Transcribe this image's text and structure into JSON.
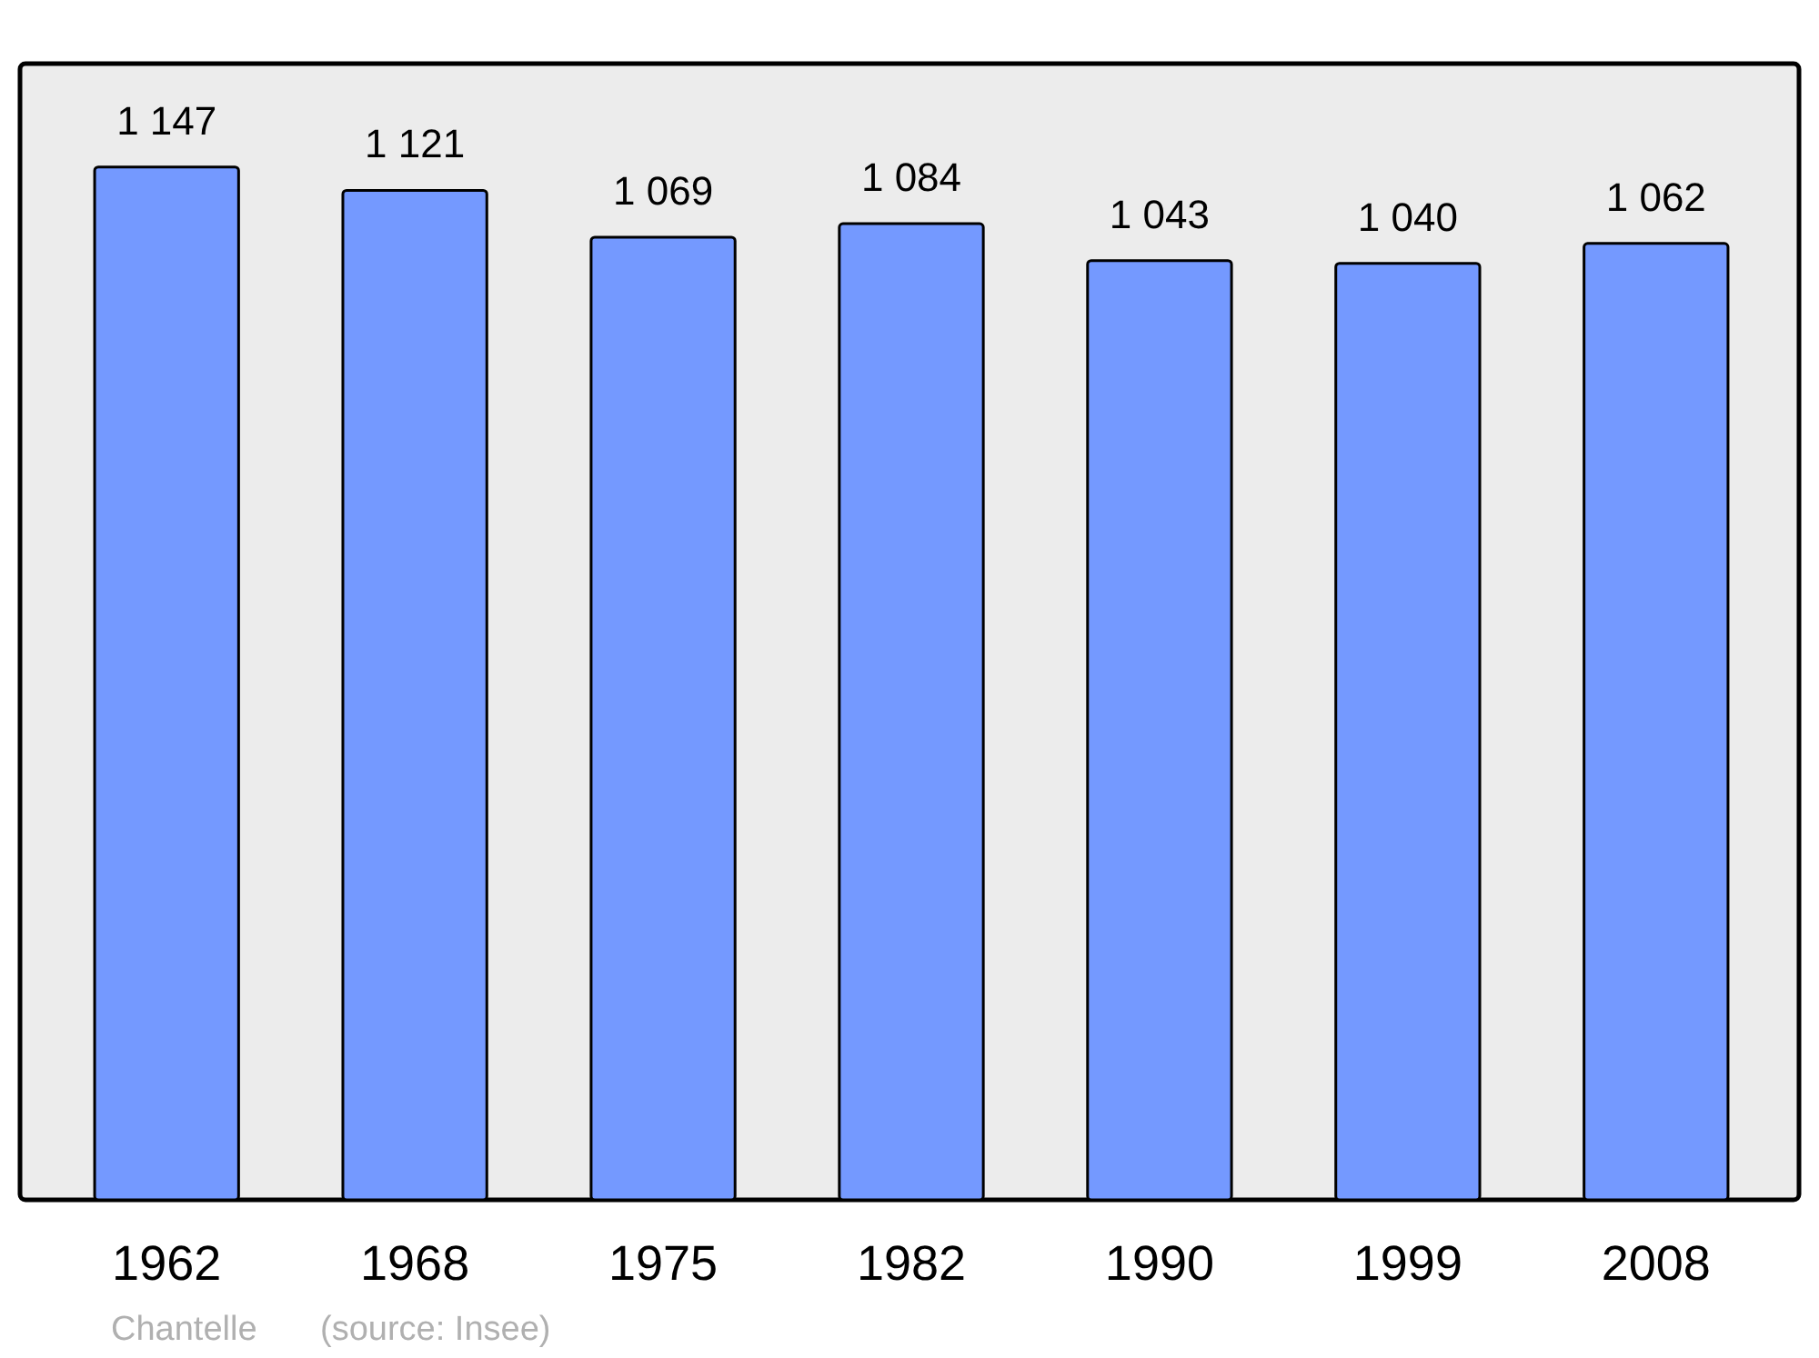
{
  "chart_data": {
    "type": "bar",
    "relative": false,
    "categories": [
      "1962",
      "1968",
      "1975",
      "1982",
      "1990",
      "1999",
      "2008"
    ],
    "values": [
      1147,
      1121,
      1069,
      1084,
      1043,
      1040,
      1062
    ],
    "value_labels": [
      "1 147",
      "1 121",
      "1 069",
      "1 084",
      "1 043",
      "1 040",
      "1 062"
    ],
    "color": "#7499ff",
    "annotations": [
      "Chantelle",
      "(source: Insee)"
    ]
  }
}
